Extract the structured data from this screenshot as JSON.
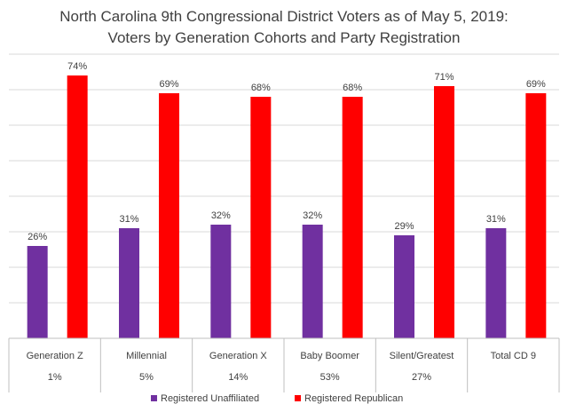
{
  "chart_data": {
    "type": "bar",
    "title": "North Carolina 9th Congressional District Voters as of May 5, 2019:",
    "subtitle": "Voters by Generation Cohorts and Party Registration",
    "categories": [
      "Generation Z",
      "Millennial",
      "Generation X",
      "Baby Boomer",
      "Silent/Greatest",
      "Total CD 9"
    ],
    "category_shares": [
      "1%",
      "5%",
      "14%",
      "53%",
      "27%",
      ""
    ],
    "series": [
      {
        "name": "Registered Unaffiliated",
        "color": "#7030a0",
        "values": [
          26,
          31,
          32,
          32,
          29,
          31
        ],
        "labels": [
          "26%",
          "31%",
          "32%",
          "32%",
          "29%",
          "31%"
        ]
      },
      {
        "name": "Registered Republican",
        "color": "#ff0000",
        "values": [
          74,
          69,
          68,
          68,
          71,
          69
        ],
        "labels": [
          "74%",
          "69%",
          "68%",
          "68%",
          "71%",
          "69%"
        ]
      }
    ],
    "ylim": [
      0,
      80
    ],
    "grid": true,
    "legend": "bottom",
    "xlabel": "",
    "ylabel": ""
  }
}
